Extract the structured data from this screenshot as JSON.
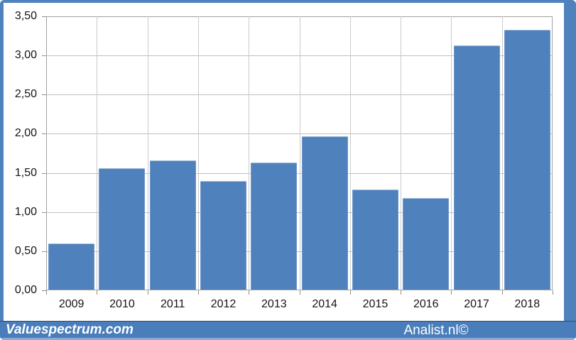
{
  "chart_data": {
    "type": "bar",
    "title": "",
    "categories": [
      "2009",
      "2010",
      "2011",
      "2012",
      "2013",
      "2014",
      "2015",
      "2016",
      "2017",
      "2018"
    ],
    "values": [
      0.59,
      1.55,
      1.65,
      1.39,
      1.62,
      1.96,
      1.28,
      1.17,
      3.12,
      3.32
    ],
    "xlabel": "",
    "ylabel": "",
    "ylim": [
      0,
      3.5
    ],
    "ytick_step": 0.5,
    "ytick_labels": [
      "0,00",
      "0,50",
      "1,00",
      "1,50",
      "2,00",
      "2,50",
      "3,00",
      "3,50"
    ],
    "decimal_style": "comma",
    "grid": true,
    "legend": false,
    "bar_color": "#4f81bd"
  },
  "footer": {
    "left_brand": "Valuespectrum.com",
    "right_brand": "Analist.nl©"
  },
  "colors": {
    "frame_blue": "#4f81bd",
    "bar_fill": "#4f81bd",
    "footer_blue": "#4a7ebb",
    "footer_top_edge": "#2a4d77",
    "footer_bottom_edge": "#8aadd6",
    "grid_line": "#c0c0c0",
    "axis_line": "#8f8f8f",
    "plot_border": "#a0a0a0",
    "tick_label": "#141414",
    "background": "#ffffff"
  }
}
